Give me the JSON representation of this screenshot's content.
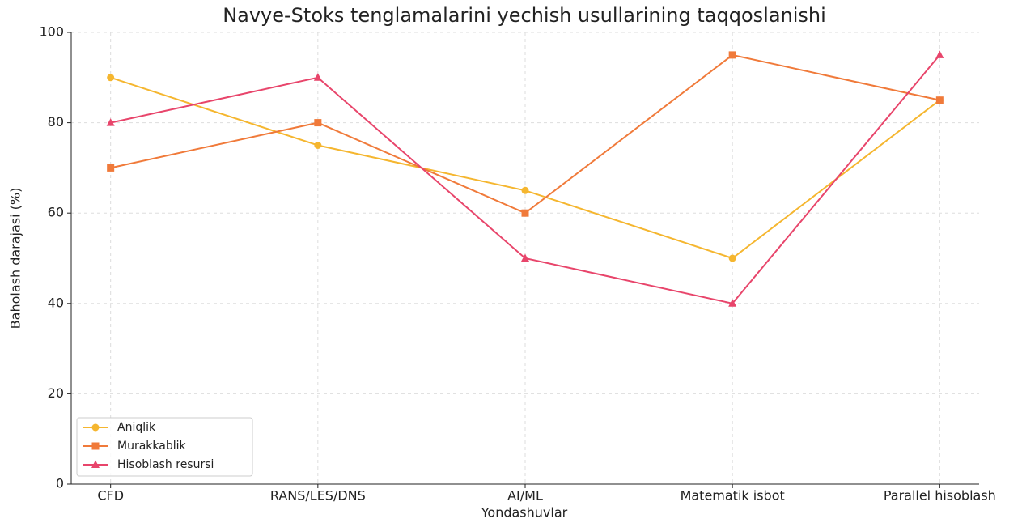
{
  "chart_data": {
    "type": "line",
    "title": "Navye-Stoks tenglamalarini yechish usullarining taqqoslanishi",
    "xlabel": "Yondashuvlar",
    "ylabel": "Baholash darajasi (%)",
    "categories": [
      "CFD",
      "RANS/LES/DNS",
      "AI/ML",
      "Matematik isbot",
      "Parallel hisoblash"
    ],
    "series": [
      {
        "name": "Aniqlik",
        "color": "#f5b62f",
        "marker": "circle",
        "values": [
          90,
          75,
          65,
          50,
          85
        ]
      },
      {
        "name": "Murakkablik",
        "color": "#f07a3a",
        "marker": "square",
        "values": [
          70,
          80,
          60,
          95,
          85
        ]
      },
      {
        "name": "Hisoblash resursi",
        "color": "#e8456b",
        "marker": "triangle",
        "values": [
          80,
          90,
          50,
          40,
          95
        ]
      }
    ],
    "ylim": [
      0,
      100
    ],
    "yticks": [
      0,
      20,
      40,
      60,
      80,
      100
    ],
    "grid": true,
    "legend": "lower left"
  }
}
